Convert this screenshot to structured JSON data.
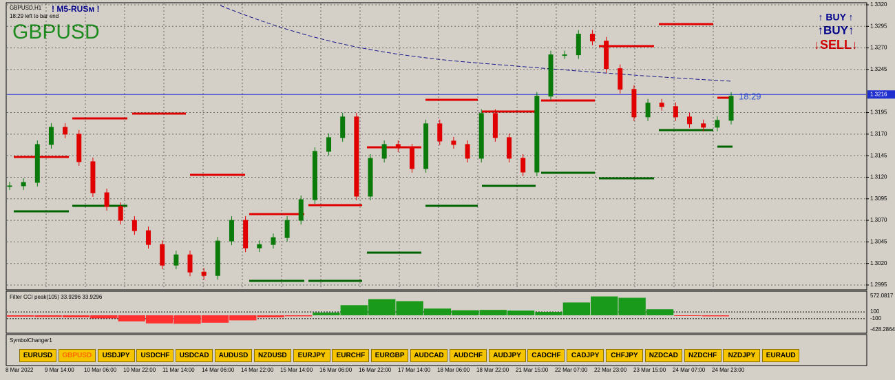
{
  "header": {
    "symbol": "GBPUSD,H1",
    "indicator": "! M5-RUSм !",
    "timer": "18:29 left to bar end",
    "big_symbol": "GBPUSD"
  },
  "signals": {
    "buy1": "↑ BUY ↑",
    "buy2": "↑BUY↑",
    "sell": "↓SELL↓"
  },
  "current_price": {
    "value": 1.3216,
    "label": "1.3216",
    "countdown": "18:29"
  },
  "price_axis": {
    "ticks": [
      {
        "value": 1.332,
        "label": "1.3320"
      },
      {
        "value": 1.3295,
        "label": "1.3295"
      },
      {
        "value": 1.327,
        "label": "1.3270"
      },
      {
        "value": 1.3245,
        "label": "1.3245"
      },
      {
        "value": 1.3195,
        "label": "1.3195"
      },
      {
        "value": 1.317,
        "label": "1.3170"
      },
      {
        "value": 1.3145,
        "label": "1.3145"
      },
      {
        "value": 1.312,
        "label": "1.3120"
      },
      {
        "value": 1.3095,
        "label": "1.3095"
      },
      {
        "value": 1.307,
        "label": "1.3070"
      },
      {
        "value": 1.3045,
        "label": "1.3045"
      },
      {
        "value": 1.302,
        "label": "1.3020"
      },
      {
        "value": 1.2995,
        "label": "1.2995"
      }
    ]
  },
  "prices": [
    1.311,
    1.3114,
    1.3158,
    1.3178,
    1.317,
    1.3138,
    1.3102,
    1.3086,
    1.307,
    1.3058,
    1.3042,
    1.3018,
    1.303,
    1.301,
    1.3006,
    1.3046,
    1.307,
    1.3038,
    1.3042,
    1.305,
    1.307,
    1.3094,
    1.315,
    1.3166,
    1.319,
    1.3098,
    1.3142,
    1.3158,
    1.3154,
    1.313,
    1.3182,
    1.3162,
    1.3158,
    1.3142,
    1.3194,
    1.3166,
    1.3142,
    1.3126,
    1.3214,
    1.3262,
    1.3262,
    1.3286,
    1.3278,
    1.3246,
    1.3222,
    1.319,
    1.3206,
    1.3202,
    1.319,
    1.3182,
    1.3178,
    1.3186,
    1.3214
  ],
  "cci": {
    "title": "Filter CCI peak(105) 33.9296 33.9296",
    "ticks": [
      572.0817,
      100,
      -100,
      -428.2864
    ],
    "values": [
      -40,
      -50,
      -60,
      -90,
      -180,
      -240,
      -250,
      -220,
      -150,
      -60,
      -30,
      80,
      300,
      480,
      420,
      200,
      150,
      160,
      140,
      100,
      380,
      560,
      520,
      180,
      -20,
      -30
    ]
  },
  "symbol_changer": {
    "title": "SymbolChanger1",
    "active_index": 1,
    "buttons": [
      "EURUSD",
      "GBPUSD",
      "USDJPY",
      "USDCHF",
      "USDCAD",
      "AUDUSD",
      "NZDUSD",
      "EURJPY",
      "EURCHF",
      "EURGBP",
      "AUDCAD",
      "AUDCHF",
      "AUDJPY",
      "CADCHF",
      "CADJPY",
      "CHFJPY",
      "NZDCAD",
      "NZDCHF",
      "NZDJPY",
      "EURAUD"
    ]
  },
  "time_axis": [
    "8 Mar 2022",
    "9 Mar 14:00",
    "10 Mar 06:00",
    "10 Mar 22:00",
    "11 Mar 14:00",
    "14 Mar 06:00",
    "14 Mar 22:00",
    "15 Mar 14:00",
    "16 Mar 06:00",
    "16 Mar 22:00",
    "17 Mar 14:00",
    "18 Mar 06:00",
    "18 Mar 22:00",
    "21 Mar 15:00",
    "22 Mar 07:00",
    "22 Mar 23:00",
    "23 Mar 15:00",
    "24 Mar 07:00",
    "24 Mar 23:00"
  ]
}
